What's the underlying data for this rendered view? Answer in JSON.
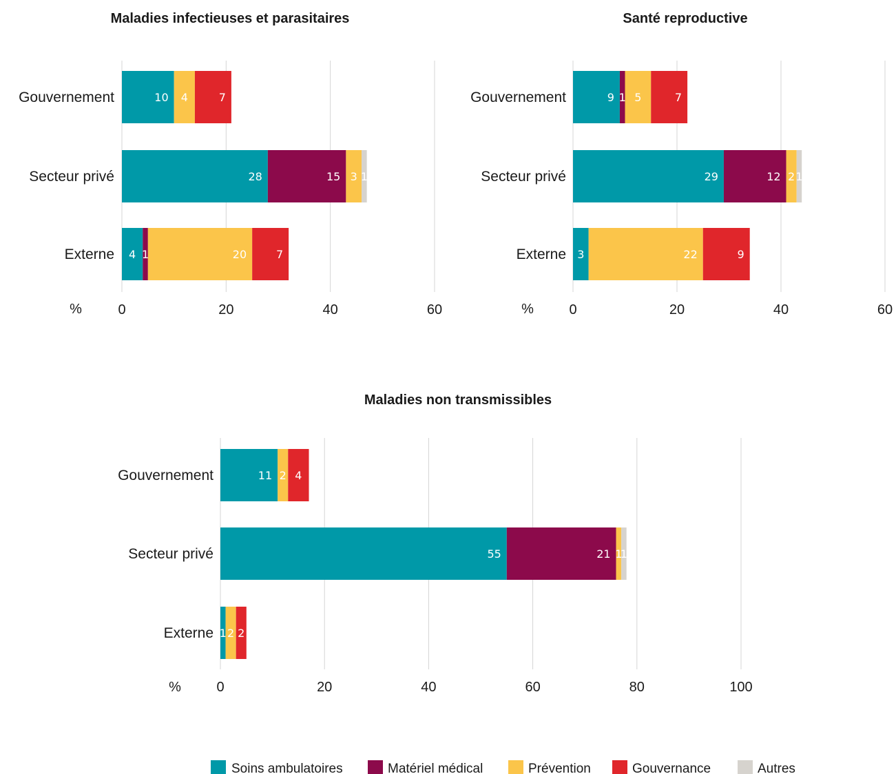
{
  "legend": [
    {
      "key": "soins",
      "label": "Soins ambulatoires",
      "color": "#0099a8"
    },
    {
      "key": "materiel",
      "label": "Matériel médical",
      "color": "#8c0a4b"
    },
    {
      "key": "prevention",
      "label": "Prévention",
      "color": "#fbc54a"
    },
    {
      "key": "gouvernance",
      "label": "Gouvernance",
      "color": "#e0262b"
    },
    {
      "key": "autres",
      "label": "Autres",
      "color": "#d6d3ce"
    }
  ],
  "chart_data": [
    {
      "type": "bar",
      "orientation": "horizontal",
      "stacked": true,
      "title": "Maladies infectieuses et parasitaires",
      "xunit": "%",
      "xlim": [
        0,
        60
      ],
      "xticks": [
        0,
        20,
        40,
        60
      ],
      "categories": [
        "Gouvernement",
        "Secteur privé",
        "Externe"
      ],
      "series": [
        {
          "key": "soins",
          "values": [
            10,
            28,
            4
          ]
        },
        {
          "key": "materiel",
          "values": [
            0,
            15,
            1
          ]
        },
        {
          "key": "prevention",
          "values": [
            4,
            3,
            20
          ]
        },
        {
          "key": "gouvernance",
          "values": [
            7,
            0,
            7
          ]
        },
        {
          "key": "autres",
          "values": [
            0,
            1,
            0
          ]
        }
      ],
      "grid": true
    },
    {
      "type": "bar",
      "orientation": "horizontal",
      "stacked": true,
      "title": "Santé reproductive",
      "xunit": "%",
      "xlim": [
        0,
        60
      ],
      "xticks": [
        0,
        20,
        40,
        60
      ],
      "categories": [
        "Gouvernement",
        "Secteur privé",
        "Externe"
      ],
      "series": [
        {
          "key": "soins",
          "values": [
            9,
            29,
            3
          ]
        },
        {
          "key": "materiel",
          "values": [
            1,
            12,
            0
          ]
        },
        {
          "key": "prevention",
          "values": [
            5,
            2,
            22
          ]
        },
        {
          "key": "gouvernance",
          "values": [
            7,
            0,
            9
          ]
        },
        {
          "key": "autres",
          "values": [
            0,
            1,
            0
          ]
        }
      ],
      "grid": true
    },
    {
      "type": "bar",
      "orientation": "horizontal",
      "stacked": true,
      "title": "Maladies non transmissibles",
      "xunit": "%",
      "xlim": [
        0,
        100
      ],
      "xticks": [
        0,
        20,
        40,
        60,
        80,
        100
      ],
      "categories": [
        "Gouvernement",
        "Secteur privé",
        "Externe"
      ],
      "series": [
        {
          "key": "soins",
          "values": [
            11,
            55,
            1
          ]
        },
        {
          "key": "materiel",
          "values": [
            0,
            21,
            0
          ]
        },
        {
          "key": "prevention",
          "values": [
            2,
            1,
            2
          ]
        },
        {
          "key": "gouvernance",
          "values": [
            4,
            0,
            2
          ]
        },
        {
          "key": "autres",
          "values": [
            0,
            1,
            0
          ]
        }
      ],
      "grid": true
    }
  ]
}
